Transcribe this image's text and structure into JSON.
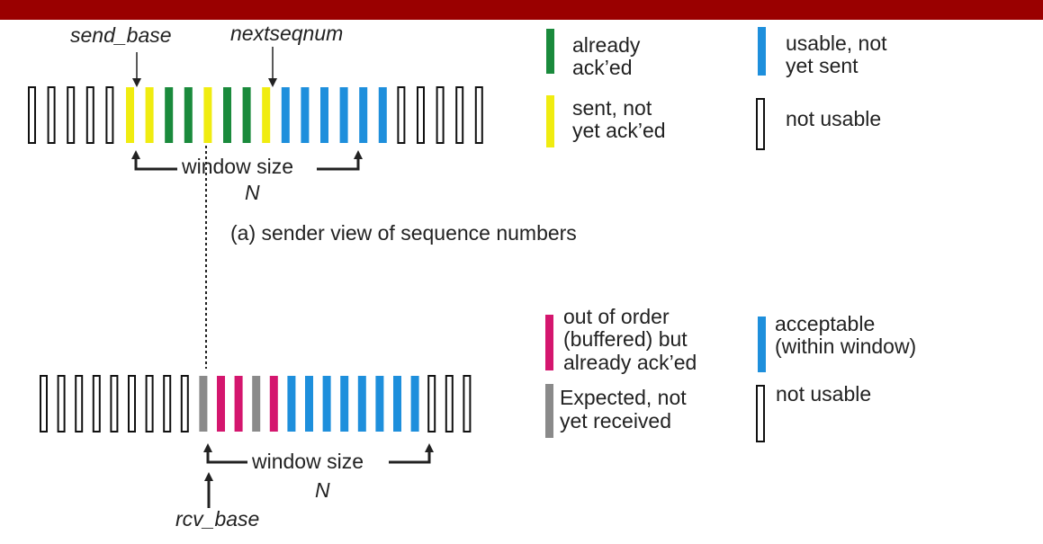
{
  "colors": {
    "header": "#9a0000",
    "acked": "#1a8a3c",
    "sent": "#f0ec10",
    "usable": "#1e8fdc",
    "buffered": "#d4166e",
    "expected": "#8a8a8a",
    "outline": "#111111"
  },
  "sender": {
    "send_base_label": "send_base",
    "nextseqnum_label": "nextseqnum",
    "window_label": "window size",
    "n_label": "N",
    "caption": "(a) sender view of sequence numbers",
    "slots": [
      "empty",
      "empty",
      "empty",
      "empty",
      "empty",
      "sent",
      "sent",
      "acked",
      "acked",
      "sent",
      "acked",
      "acked",
      "sent",
      "usable",
      "usable",
      "usable",
      "usable",
      "usable",
      "usable",
      "empty",
      "empty",
      "empty",
      "empty",
      "empty"
    ]
  },
  "receiver": {
    "rcv_base_label": "rcv_base",
    "window_label": "window size",
    "n_label": "N",
    "slots": [
      "empty",
      "empty",
      "empty",
      "empty",
      "empty",
      "empty",
      "empty",
      "empty",
      "empty",
      "expected",
      "buffered",
      "buffered",
      "expected",
      "buffered",
      "usable",
      "usable",
      "usable",
      "usable",
      "usable",
      "usable",
      "usable",
      "usable",
      "empty",
      "empty",
      "empty"
    ]
  },
  "legend_top": {
    "acked_line1": "already",
    "acked_line2": "ack’ed",
    "sent_line1": "sent, not",
    "sent_line2": "yet ack’ed",
    "usable_line1": "usable, not",
    "usable_line2": "yet sent",
    "notusable": "not usable"
  },
  "legend_bottom": {
    "buffered_line1": "out of order",
    "buffered_line2": "(buffered) but",
    "buffered_line3": "already ack’ed",
    "expected_line1": "Expected, not",
    "expected_line2": "yet received",
    "acceptable_line1": "acceptable",
    "acceptable_line2": "(within window)",
    "notusable": "not usable"
  }
}
